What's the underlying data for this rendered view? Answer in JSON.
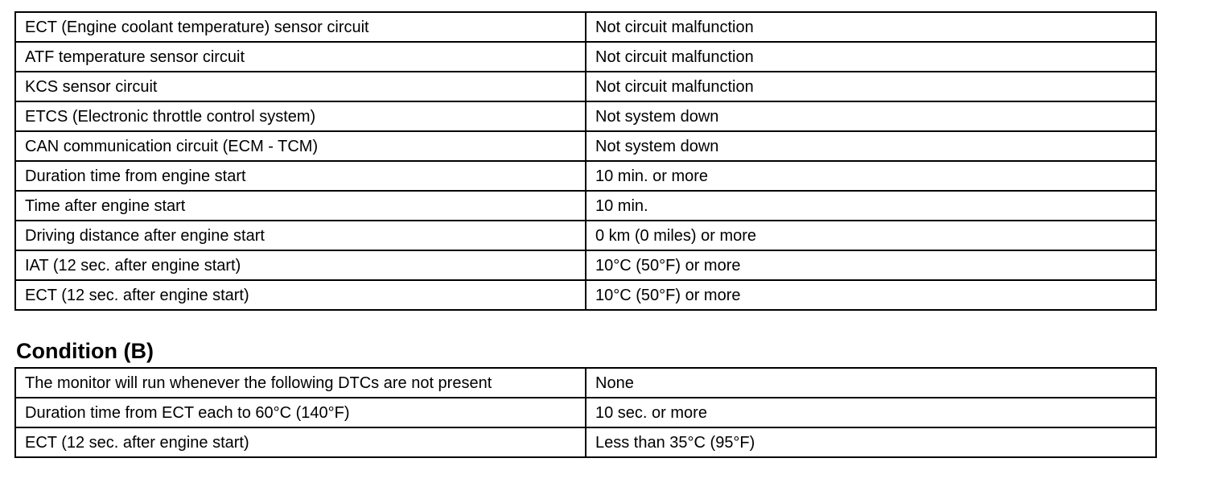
{
  "table_a": {
    "rows": [
      {
        "item": "ECT (Engine coolant temperature) sensor circuit",
        "value": "Not circuit malfunction"
      },
      {
        "item": "ATF temperature sensor circuit",
        "value": "Not circuit malfunction"
      },
      {
        "item": "KCS sensor circuit",
        "value": "Not circuit malfunction"
      },
      {
        "item": "ETCS (Electronic throttle control system)",
        "value": "Not system down"
      },
      {
        "item": "CAN communication circuit (ECM - TCM)",
        "value": "Not system down"
      },
      {
        "item": "Duration time from engine start",
        "value": "10 min. or more"
      },
      {
        "item": "Time after engine start",
        "value": "10 min."
      },
      {
        "item": "Driving distance after engine start",
        "value": "0 km (0 miles) or more"
      },
      {
        "item": "IAT (12 sec. after engine start)",
        "value": "10°C (50°F) or more"
      },
      {
        "item": "ECT (12 sec. after engine start)",
        "value": "10°C (50°F) or more"
      }
    ]
  },
  "condition_b": {
    "heading": "Condition (B)",
    "rows": [
      {
        "item": "The monitor will run whenever the following DTCs are not present",
        "value": "None"
      },
      {
        "item": "Duration time from ECT each to 60°C (140°F)",
        "value": "10 sec. or more"
      },
      {
        "item": "ECT (12 sec. after engine start)",
        "value": "Less than 35°C (95°F)"
      }
    ]
  }
}
